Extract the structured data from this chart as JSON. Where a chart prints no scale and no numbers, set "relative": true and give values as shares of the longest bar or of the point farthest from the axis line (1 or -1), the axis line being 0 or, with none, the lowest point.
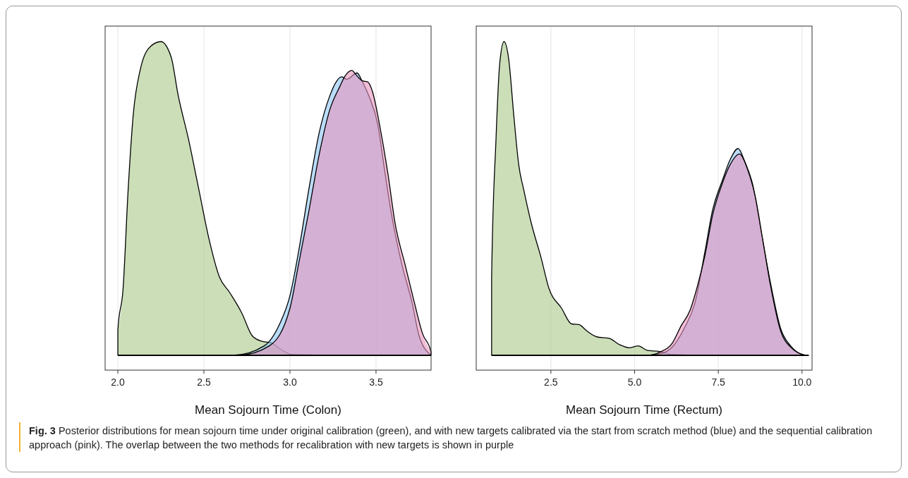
{
  "chart_data": [
    {
      "type": "area",
      "relative": true,
      "xlabel": "Mean Sojourn Time (Colon)",
      "xlim": [
        1.926,
        3.82
      ],
      "xticks": [
        {
          "value": 2,
          "label": "2.0"
        },
        2.5,
        {
          "value": 3,
          "label": "3.0"
        },
        3.5
      ],
      "grid": "x",
      "tick_labels": "x",
      "series": [
        {
          "color": "#a8c888",
          "x": [
            2.0,
            2.03,
            2.06,
            2.09,
            2.13,
            2.19,
            2.25,
            2.31,
            2.35,
            2.41,
            2.47,
            2.53,
            2.59,
            2.65,
            2.72,
            2.78,
            2.835,
            2.89,
            2.95,
            3.01,
            3.14,
            3.3,
            3.82
          ],
          "values": [
            0.08,
            0.21,
            0.53,
            0.77,
            0.91,
            0.985,
            1,
            0.95,
            0.83,
            0.69,
            0.53,
            0.37,
            0.25,
            0.2,
            0.135,
            0.063,
            0.045,
            0.04,
            0.018,
            0.003,
            0.001,
            0,
            0
          ]
        },
        {
          "color": "#8cc4f4",
          "x": [
            2.0,
            2.68,
            2.85,
            2.94,
            3.0,
            3.05,
            3.11,
            3.17,
            3.23,
            3.27,
            3.3,
            3.33,
            3.39,
            3.42,
            3.46,
            3.51,
            3.55,
            3.59,
            3.65,
            3.71,
            3.75,
            3.82
          ],
          "values": [
            0,
            0.001,
            0.03,
            0.1,
            0.19,
            0.33,
            0.53,
            0.71,
            0.825,
            0.873,
            0.888,
            0.88,
            0.9,
            0.873,
            0.825,
            0.737,
            0.59,
            0.45,
            0.29,
            0.167,
            0.063,
            0
          ]
        },
        {
          "color": "#e693bd",
          "x": [
            2.0,
            2.71,
            2.88,
            3.0,
            3.05,
            3.11,
            3.17,
            3.23,
            3.29,
            3.32,
            3.36,
            3.38,
            3.42,
            3.45,
            3.48,
            3.52,
            3.57,
            3.61,
            3.67,
            3.72,
            3.77,
            3.82
          ],
          "values": [
            0,
            0.001,
            0.03,
            0.15,
            0.29,
            0.46,
            0.64,
            0.78,
            0.857,
            0.89,
            0.908,
            0.897,
            0.875,
            0.872,
            0.84,
            0.737,
            0.576,
            0.424,
            0.287,
            0.175,
            0.07,
            0.01
          ]
        }
      ],
      "annotations": [
        "Fig. 3",
        "Posterior distributions for mean sojourn time under original calibration (green), and with new targets calibrated via the start from scratch method (blue) and the sequential calibration approach (pink). The overlap between the two methods for recalibration with new targets is shown in purple"
      ]
    },
    {
      "type": "area",
      "relative": true,
      "xlabel": "Mean Sojourn Time (Rectum)",
      "xlim": [
        0.27,
        10.3
      ],
      "xticks": [
        2.5,
        {
          "value": 5,
          "label": "5.0"
        },
        7.5,
        {
          "value": 10,
          "label": "10.0"
        }
      ],
      "grid": "x",
      "tick_labels": "x",
      "series": [
        {
          "color": "#a8c888",
          "x": [
            0.73,
            0.86,
            0.97,
            1.1,
            1.24,
            1.39,
            1.54,
            1.69,
            1.91,
            2.21,
            2.44,
            2.82,
            3.12,
            3.34,
            3.57,
            3.87,
            4.24,
            4.55,
            4.85,
            5.11,
            5.37,
            5.75,
            6.12,
            7.0,
            10.2
          ],
          "values": [
            0.246,
            0.687,
            0.928,
            1,
            0.944,
            0.767,
            0.607,
            0.527,
            0.423,
            0.31,
            0.214,
            0.15,
            0.1,
            0.098,
            0.078,
            0.059,
            0.054,
            0.034,
            0.024,
            0.03,
            0.016,
            0.012,
            0.003,
            0,
            0
          ]
        },
        {
          "color": "#8cc4f4",
          "x": [
            0.73,
            5.22,
            5.75,
            6.12,
            6.5,
            6.8,
            7.1,
            7.33,
            7.63,
            7.85,
            8.09,
            8.3,
            8.53,
            8.76,
            9.06,
            9.36,
            9.66,
            9.86,
            10.1
          ],
          "values": [
            0,
            0,
            0.005,
            0.026,
            0.09,
            0.166,
            0.33,
            0.463,
            0.56,
            0.623,
            0.659,
            0.615,
            0.543,
            0.407,
            0.23,
            0.086,
            0.03,
            0.01,
            0
          ]
        },
        {
          "color": "#e693bd",
          "x": [
            0.73,
            5.37,
            5.75,
            6.12,
            6.39,
            6.65,
            6.88,
            7.1,
            7.33,
            7.63,
            7.85,
            8.13,
            8.38,
            8.61,
            8.83,
            9.06,
            9.36,
            9.66,
            10.1
          ],
          "values": [
            0,
            0,
            0.01,
            0.038,
            0.094,
            0.142,
            0.222,
            0.318,
            0.447,
            0.551,
            0.607,
            0.642,
            0.591,
            0.503,
            0.366,
            0.222,
            0.078,
            0.026,
            0
          ]
        }
      ]
    }
  ]
}
